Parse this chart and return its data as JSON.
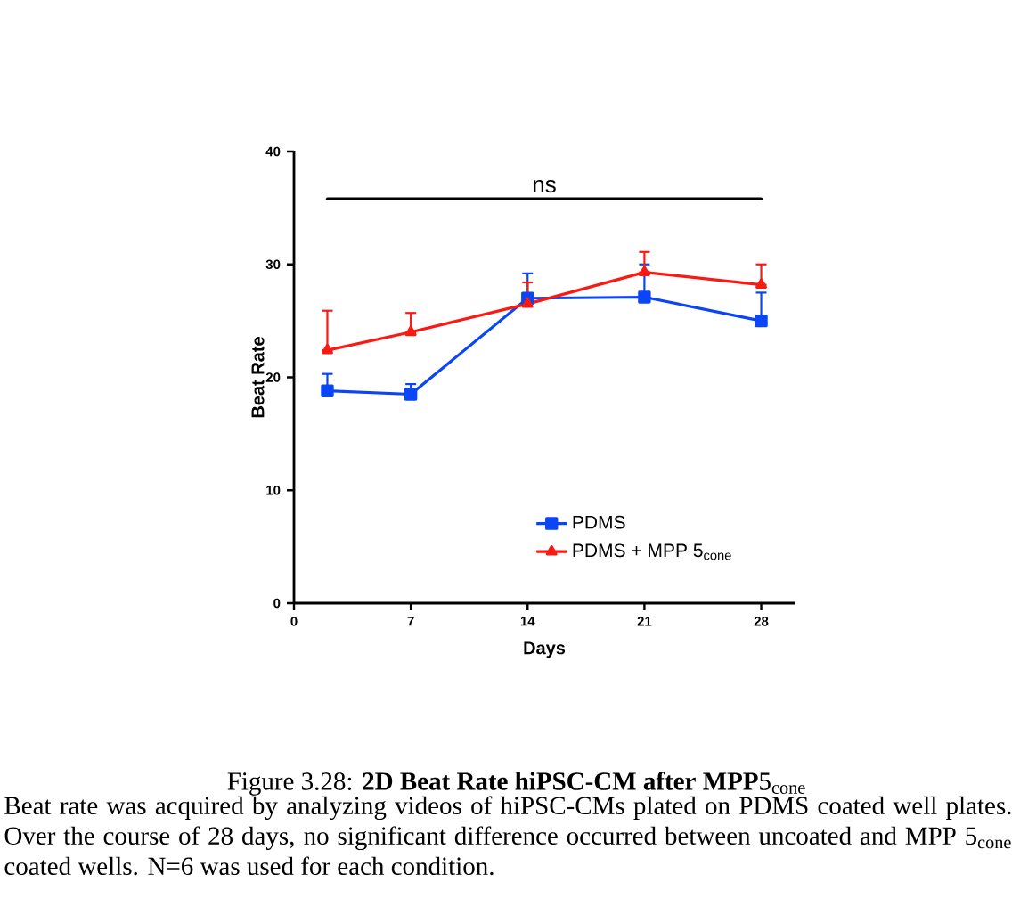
{
  "chart_data": {
    "type": "line",
    "xlabel": "Days",
    "ylabel": "Beat Rate",
    "x": [
      2,
      7,
      14,
      21,
      28
    ],
    "xlim": [
      0,
      30
    ],
    "xticks": [
      0,
      7,
      14,
      21,
      28
    ],
    "ylim": [
      0,
      40
    ],
    "yticks": [
      0,
      10,
      20,
      30,
      40
    ],
    "series": [
      {
        "name": "PDMS",
        "color": "#0a46f5",
        "marker": "square",
        "values": [
          18.8,
          18.5,
          27.0,
          27.1,
          25.0
        ],
        "errors": [
          [
            18.8,
            20.3
          ],
          [
            18.5,
            19.4
          ],
          [
            27.0,
            29.2
          ],
          [
            27.1,
            30.0
          ],
          [
            25.0,
            27.5
          ]
        ]
      },
      {
        "name": "PDMS + MPP 5$_{cone}$",
        "color": "#f91a14",
        "marker": "triangle",
        "values": [
          22.4,
          24.0,
          26.5,
          29.3,
          28.2
        ],
        "errors": [
          [
            22.4,
            25.9
          ],
          [
            24.0,
            25.7
          ],
          [
            26.5,
            28.4
          ],
          [
            29.3,
            31.1
          ],
          [
            28.2,
            30.0
          ]
        ]
      }
    ],
    "legend": "bottom right",
    "grid": false,
    "line_style": "solid",
    "ref_lines": [
      {
        "axis": "y",
        "value": 35.8,
        "label": "ns",
        "color": "#000000"
      }
    ],
    "annotations": [
      "Figure 3.28: **2D Beat Rate hiPSC-CM after MPP**5$_{cone}$",
      "Beat rate was acquired by analyzing videos of hiPSC-CMs plated on PDMS coated well plates. Over the course of 28 days, no significant difference occurred between uncoated and MPP 5$_{cone}$ coated wells. N=6 was used for each condition."
    ]
  }
}
